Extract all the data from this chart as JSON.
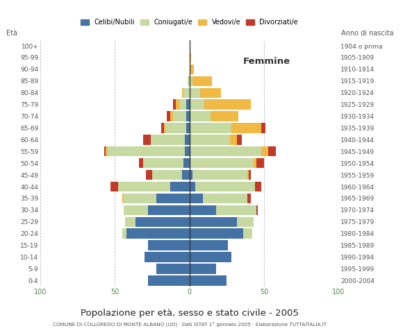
{
  "age_groups": [
    "100+",
    "95-99",
    "90-94",
    "85-89",
    "80-84",
    "75-79",
    "70-74",
    "65-69",
    "60-64",
    "55-59",
    "50-54",
    "45-49",
    "40-44",
    "35-39",
    "30-34",
    "25-29",
    "20-24",
    "15-19",
    "10-14",
    "5-9",
    "0-4"
  ],
  "birth_years": [
    "1904 o prima",
    "1905-1909",
    "1910-1914",
    "1915-1919",
    "1920-1924",
    "1925-1929",
    "1930-1934",
    "1935-1939",
    "1940-1944",
    "1945-1949",
    "1950-1954",
    "1955-1959",
    "1960-1964",
    "1965-1969",
    "1970-1974",
    "1975-1979",
    "1980-1984",
    "1985-1989",
    "1990-1994",
    "1995-1999",
    "2000-2004"
  ],
  "males": {
    "celibi": [
      0,
      0,
      0,
      0,
      0,
      2,
      2,
      2,
      3,
      3,
      4,
      5,
      13,
      22,
      28,
      36,
      42,
      28,
      30,
      22,
      28
    ],
    "coniugati": [
      0,
      0,
      0,
      1,
      4,
      5,
      9,
      14,
      23,
      52,
      27,
      20,
      35,
      22,
      16,
      7,
      3,
      0,
      0,
      0,
      0
    ],
    "vedovi": [
      0,
      0,
      0,
      0,
      1,
      2,
      2,
      1,
      0,
      1,
      0,
      0,
      0,
      1,
      0,
      0,
      0,
      0,
      0,
      0,
      0
    ],
    "divorziati": [
      0,
      0,
      0,
      0,
      0,
      2,
      2,
      2,
      5,
      1,
      3,
      4,
      5,
      0,
      0,
      0,
      0,
      0,
      0,
      0,
      0
    ]
  },
  "females": {
    "celibi": [
      0,
      0,
      0,
      0,
      0,
      0,
      0,
      0,
      0,
      0,
      0,
      2,
      4,
      9,
      18,
      32,
      36,
      26,
      28,
      18,
      25
    ],
    "coniugati": [
      0,
      0,
      0,
      2,
      7,
      10,
      14,
      28,
      27,
      48,
      43,
      37,
      40,
      30,
      27,
      11,
      6,
      0,
      0,
      0,
      0
    ],
    "vedovi": [
      0,
      1,
      3,
      13,
      14,
      31,
      19,
      20,
      5,
      5,
      2,
      1,
      0,
      0,
      0,
      0,
      0,
      0,
      0,
      0,
      0
    ],
    "divorziati": [
      0,
      0,
      0,
      0,
      0,
      0,
      0,
      3,
      3,
      5,
      5,
      1,
      4,
      2,
      1,
      0,
      0,
      0,
      0,
      0,
      0
    ]
  },
  "colors": {
    "celibi": "#4472a4",
    "coniugati": "#c5d9a0",
    "vedovi": "#f0b944",
    "divorziati": "#c0392b"
  },
  "xlim": 100,
  "title": "Popolazione per età, sesso e stato civile - 2005",
  "subtitle": "COMUNE DI COLLOREDO DI MONTE ALBANO (UD) · Dati ISTAT 1° gennaio 2005 · Elaborazione TUTTAITALIA.IT",
  "ylabel_left": "Età",
  "ylabel_right": "Anno di nascita",
  "label_femmine": "Femmine",
  "legend_labels": [
    "Celibi/Nubili",
    "Coniugati/e",
    "Vedovi/e",
    "Divorziati/e"
  ],
  "bg_color": "#ffffff",
  "grid_color": "#bbbbbb"
}
